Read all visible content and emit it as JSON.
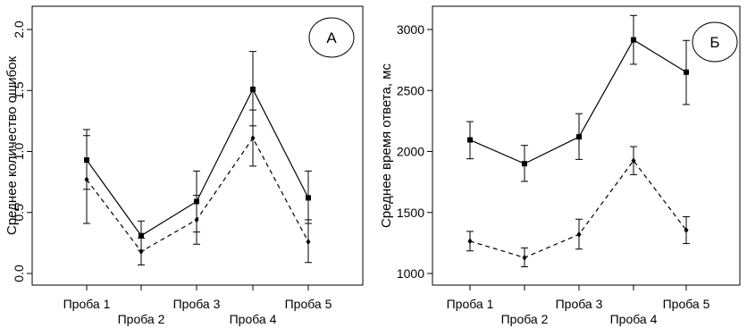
{
  "chart_data": [
    {
      "type": "line",
      "panel_label": "А",
      "ylabel": "Среднее количество ошибок",
      "categories": [
        "Проба 1",
        "Проба 2",
        "Проба 3",
        "Проба 4",
        "Проба 5"
      ],
      "ylim": [
        0,
        2
      ],
      "yticks": [
        "0.0",
        "0.5",
        "1.0",
        "1.5",
        "2.0"
      ],
      "series": [
        {
          "style": "solid",
          "marker": "square",
          "values": [
            0.93,
            0.31,
            0.59,
            1.51,
            0.62
          ],
          "upper": [
            1.18,
            0.43,
            0.84,
            1.82,
            0.84
          ],
          "lower": [
            0.69,
            0.19,
            0.34,
            1.21,
            0.41
          ]
        },
        {
          "style": "dashed",
          "marker": "diamond",
          "values": [
            0.77,
            0.18,
            0.44,
            1.11,
            0.26
          ],
          "upper": [
            1.13,
            0.29,
            0.64,
            1.34,
            0.44
          ],
          "lower": [
            0.41,
            0.07,
            0.24,
            0.88,
            0.09
          ]
        }
      ]
    },
    {
      "type": "line",
      "panel_label": "Б",
      "ylabel": "Среднее время ответа, мс",
      "categories": [
        "Проба 1",
        "Проба 2",
        "Проба 3",
        "Проба 4",
        "Проба 5"
      ],
      "ylim": [
        1000,
        3000
      ],
      "yticks": [
        "1000",
        "1500",
        "2000",
        "2500",
        "3000"
      ],
      "series": [
        {
          "style": "solid",
          "marker": "square",
          "values": [
            2095,
            1900,
            2120,
            2915,
            2650
          ],
          "upper": [
            2245,
            2050,
            2310,
            3115,
            2910
          ],
          "lower": [
            1940,
            1755,
            1935,
            2715,
            2385
          ]
        },
        {
          "style": "dashed",
          "marker": "diamond",
          "values": [
            1265,
            1130,
            1320,
            1925,
            1355
          ],
          "upper": [
            1345,
            1210,
            1445,
            2040,
            1465
          ],
          "lower": [
            1185,
            1055,
            1200,
            1810,
            1245
          ]
        }
      ]
    }
  ]
}
